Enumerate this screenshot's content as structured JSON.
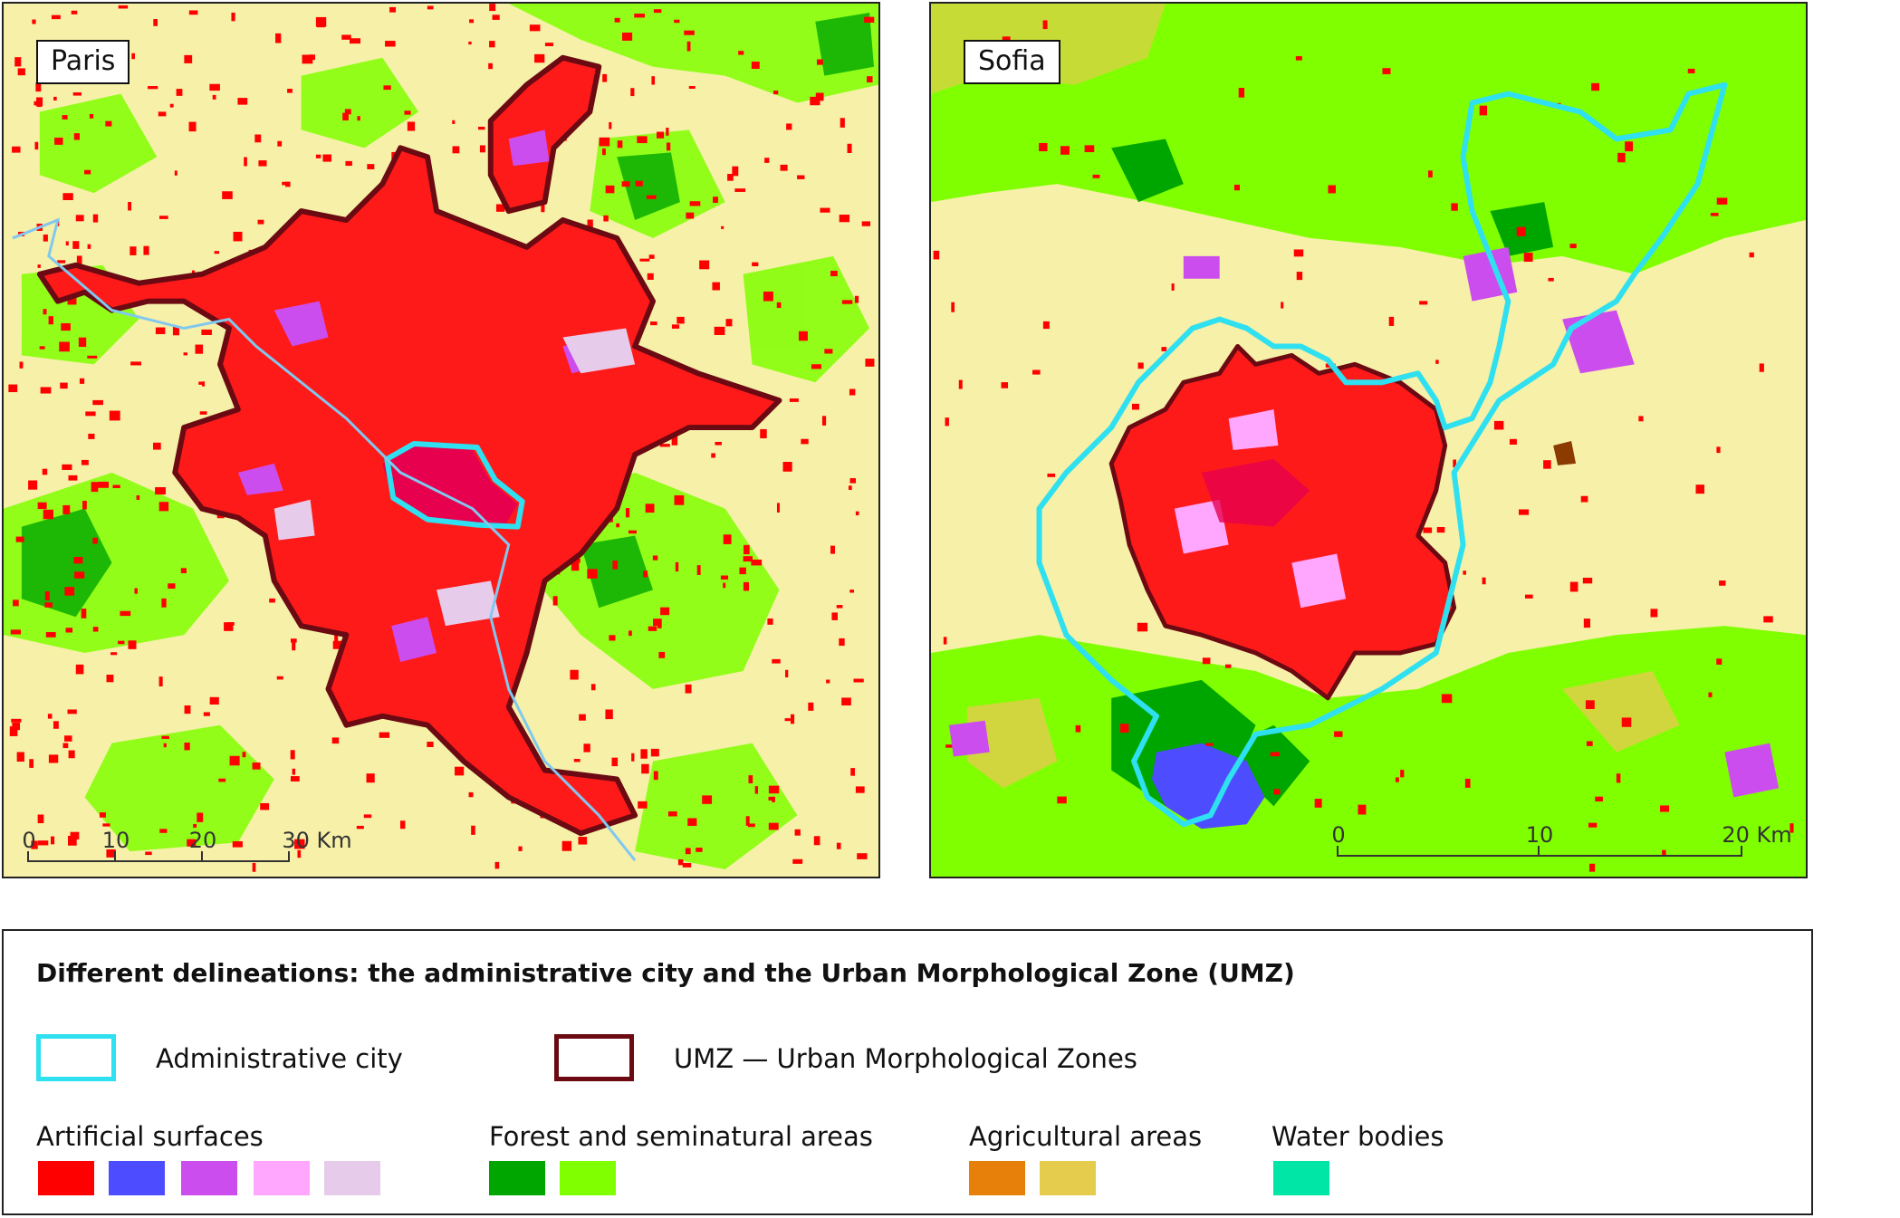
{
  "maps": {
    "paris": {
      "label": "Paris",
      "scale": {
        "ticks": [
          "0",
          "10",
          "20",
          "30 Km"
        ]
      }
    },
    "sofia": {
      "label": "Sofia",
      "scale": {
        "ticks": [
          "0",
          "10",
          "20 Km"
        ]
      }
    }
  },
  "legend": {
    "title": "Different delineations: the administrative city and the Urban Morphological Zone (UMZ)",
    "admin_city": {
      "label": "Administrative city",
      "color": "#2ee0f0"
    },
    "umz": {
      "label": "UMZ — Urban Morphological Zones",
      "color": "#6b0a12"
    },
    "groups": [
      {
        "label": "Artificial surfaces",
        "colors": [
          "#ff0000",
          "#4d4dff",
          "#cc4dee",
          "#ffa6ff",
          "#e6ccea"
        ]
      },
      {
        "label": "Forest and seminatural areas",
        "colors": [
          "#00a600",
          "#80ff00"
        ]
      },
      {
        "label": "Agricultural areas",
        "colors": [
          "#e6800a",
          "#e6cc4d"
        ]
      },
      {
        "label": "Water bodies",
        "colors": [
          "#00e6a6"
        ]
      }
    ]
  },
  "colors": {
    "agri_light": "#f6f0a8",
    "urban_dark": "#e6004d",
    "water_line": "#80c8f0"
  }
}
